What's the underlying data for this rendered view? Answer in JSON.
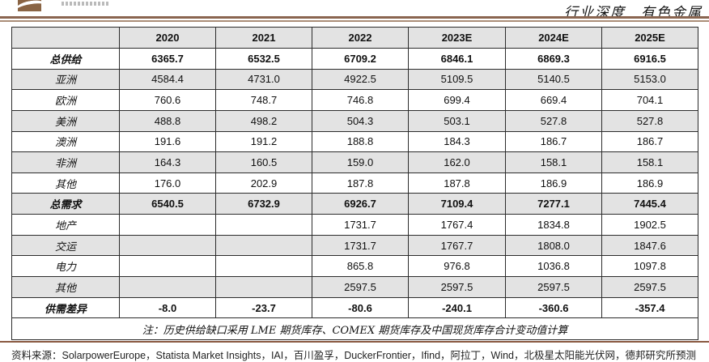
{
  "header": {
    "doc_title": "行业深度　有色金属"
  },
  "table": {
    "columns": [
      "",
      "2020",
      "2021",
      "2022",
      "2023E",
      "2024E",
      "2025E"
    ],
    "rows": [
      {
        "label": "总供给",
        "bold": true,
        "values": [
          "6365.7",
          "6532.5",
          "6709.2",
          "6846.1",
          "6869.3",
          "6916.5"
        ]
      },
      {
        "label": "亚洲",
        "bold": false,
        "values": [
          "4584.4",
          "4731.0",
          "4922.5",
          "5109.5",
          "5140.5",
          "5153.0"
        ]
      },
      {
        "label": "欧洲",
        "bold": false,
        "values": [
          "760.6",
          "748.7",
          "746.8",
          "699.4",
          "669.4",
          "704.1"
        ]
      },
      {
        "label": "美洲",
        "bold": false,
        "values": [
          "488.8",
          "498.2",
          "504.3",
          "503.1",
          "527.8",
          "527.8"
        ]
      },
      {
        "label": "澳洲",
        "bold": false,
        "values": [
          "191.6",
          "191.2",
          "188.8",
          "184.3",
          "186.7",
          "186.7"
        ]
      },
      {
        "label": "非洲",
        "bold": false,
        "values": [
          "164.3",
          "160.5",
          "159.0",
          "162.0",
          "158.1",
          "158.1"
        ]
      },
      {
        "label": "其他",
        "bold": false,
        "values": [
          "176.0",
          "202.9",
          "187.8",
          "187.8",
          "186.9",
          "186.9"
        ]
      },
      {
        "label": "总需求",
        "bold": true,
        "values": [
          "6540.5",
          "6732.9",
          "6926.7",
          "7109.4",
          "7277.1",
          "7445.4"
        ]
      },
      {
        "label": "地产",
        "bold": false,
        "values": [
          "",
          "",
          "1731.7",
          "1767.4",
          "1834.8",
          "1902.5"
        ]
      },
      {
        "label": "交运",
        "bold": false,
        "values": [
          "",
          "",
          "1731.7",
          "1767.7",
          "1808.0",
          "1847.6"
        ]
      },
      {
        "label": "电力",
        "bold": false,
        "values": [
          "",
          "",
          "865.8",
          "976.8",
          "1036.8",
          "1097.8"
        ]
      },
      {
        "label": "其他",
        "bold": false,
        "values": [
          "",
          "",
          "2597.5",
          "2597.5",
          "2597.5",
          "2597.5"
        ]
      },
      {
        "label": "供需差异",
        "bold": true,
        "values": [
          "-8.0",
          "-23.7",
          "-80.6",
          "-240.1",
          "-360.6",
          "-357.4"
        ]
      }
    ],
    "note": "注：历史供给缺口采用 LME 期货库存、COMEX 期货库存及中国现货库存合计变动值计算"
  },
  "footer": {
    "source": "资料来源：SolarpowerEurope，Statista Market Insights，IAI，百川盈孚，DuckerFrontier，Ifind，阿拉丁，Wind，北极星太阳能光伏网，德邦研究所预测"
  },
  "colors": {
    "accent_brown": "#8a6550",
    "row_stripe": "#e3e3e3",
    "table_border": "#2c2c2c"
  }
}
